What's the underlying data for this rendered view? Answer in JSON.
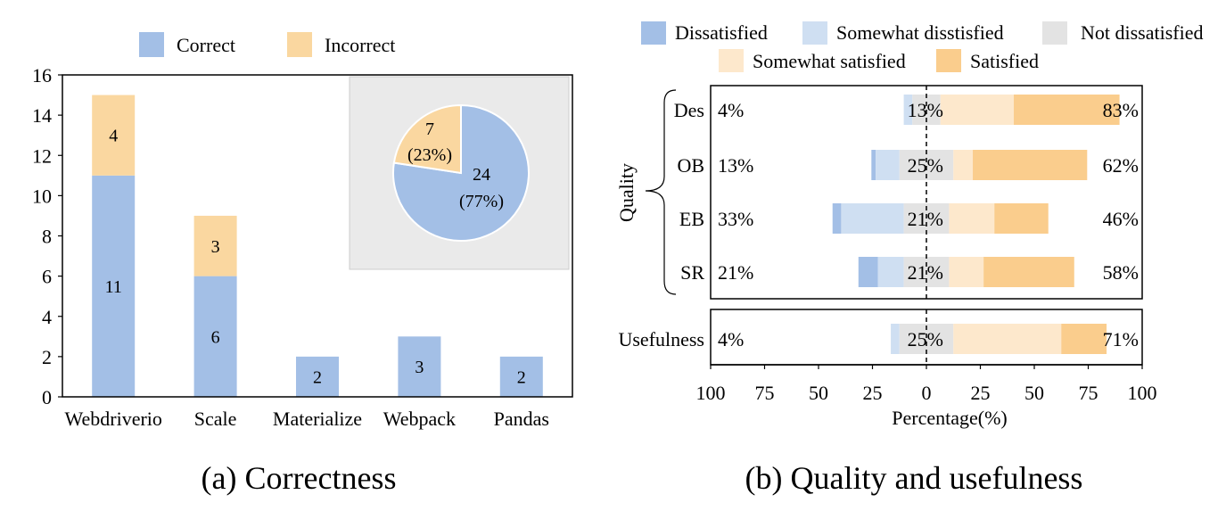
{
  "colors": {
    "correct": "#a3bfe6",
    "incorrect": "#fad7a0",
    "dissatisfied": "#a3bfe6",
    "somewhat_dissatisfied": "#cfdff2",
    "not_dissatisfied": "#e3e3e3",
    "somewhat_satisfied": "#fde8cc",
    "satisfied": "#facd8d",
    "inset_bg": "#eaeaea"
  },
  "chart_data": [
    {
      "type": "bar",
      "stacked": true,
      "caption": "(a) Correctness",
      "categories": [
        "Webdriverio",
        "Scale",
        "Materialize",
        "Webpack",
        "Pandas"
      ],
      "series": [
        {
          "name": "Correct",
          "values": [
            11,
            6,
            2,
            3,
            2
          ]
        },
        {
          "name": "Incorrect",
          "values": [
            4,
            3,
            0,
            0,
            0
          ]
        }
      ],
      "ylim": [
        0,
        16
      ],
      "yticks": [
        0,
        2,
        4,
        6,
        8,
        10,
        12,
        14,
        16
      ],
      "legend": "top",
      "inset_pie": {
        "type": "pie",
        "slices": [
          {
            "name": "Correct",
            "value": 24,
            "label": "24",
            "pct_label": "(77%)"
          },
          {
            "name": "Incorrect",
            "value": 7,
            "label": "7",
            "pct_label": "(23%)"
          }
        ]
      }
    },
    {
      "type": "bar",
      "diverging": true,
      "caption": "(b) Quality and usefulness",
      "xlabel": "Percentage(%)",
      "xlim": [
        -100,
        100
      ],
      "xticks": [
        -100,
        -75,
        -50,
        -25,
        0,
        25,
        50,
        75,
        100
      ],
      "xtick_labels": [
        "100",
        "75",
        "50",
        "25",
        "0",
        "25",
        "50",
        "75",
        "100"
      ],
      "legend_labels": [
        "Dissatisfied",
        "Somewhat disstisfied",
        "Not dissatisfied",
        "Somewhat satisfied",
        "Satisfied"
      ],
      "group_label": "Quality",
      "rows": [
        {
          "label": "Des",
          "left_pct": "4%",
          "center_pct": "13%",
          "right_pct": "83%",
          "segments": [
            0,
            4,
            13,
            34,
            49
          ]
        },
        {
          "label": "OB",
          "left_pct": "13%",
          "center_pct": "25%",
          "right_pct": "62%",
          "segments": [
            2,
            11,
            25,
            9,
            53
          ]
        },
        {
          "label": "EB",
          "left_pct": "33%",
          "center_pct": "21%",
          "right_pct": "46%",
          "segments": [
            4,
            29,
            21,
            21,
            25
          ]
        },
        {
          "label": "SR",
          "left_pct": "21%",
          "center_pct": "21%",
          "right_pct": "58%",
          "segments": [
            9,
            12,
            21,
            16,
            42
          ]
        },
        {
          "label": "Usefulness",
          "left_pct": "4%",
          "center_pct": "25%",
          "right_pct": "71%",
          "segments": [
            0,
            4,
            25,
            50,
            21
          ]
        }
      ]
    }
  ]
}
